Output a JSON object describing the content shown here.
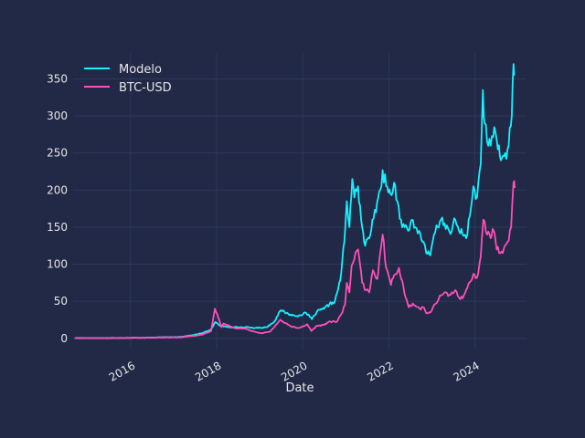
{
  "chart_data": {
    "type": "line",
    "title": "",
    "xlabel": "Date",
    "ylabel": "",
    "x_axis": "date",
    "xlim": [
      "2014-09-01",
      "2025-03-15"
    ],
    "ylim": [
      -15,
      385
    ],
    "grid": true,
    "legend_position": "top-left",
    "x_ticks": [
      "2016-01-01",
      "2018-01-01",
      "2020-01-01",
      "2022-01-01",
      "2024-01-01"
    ],
    "x_tick_labels": [
      "2016",
      "2018",
      "2020",
      "2022",
      "2024"
    ],
    "y_ticks": [
      0,
      50,
      100,
      150,
      200,
      250,
      300,
      350
    ],
    "y_tick_labels": [
      "0",
      "50",
      "100",
      "150",
      "200",
      "250",
      "300",
      "350"
    ],
    "colors": {
      "background": "#212946",
      "grid": "#2e3a5c",
      "text": "#e6e6e6"
    },
    "series": [
      {
        "name": "Modelo",
        "color": "#18f0ff",
        "points": [
          [
            "2014-09-15",
            0.5
          ],
          [
            "2015-06-01",
            0.4
          ],
          [
            "2016-06-01",
            1
          ],
          [
            "2017-03-01",
            2
          ],
          [
            "2017-06-01",
            4
          ],
          [
            "2017-09-01",
            7
          ],
          [
            "2017-11-15",
            12
          ],
          [
            "2017-12-20",
            22
          ],
          [
            "2018-01-20",
            18
          ],
          [
            "2018-03-01",
            16
          ],
          [
            "2018-06-01",
            15
          ],
          [
            "2018-09-01",
            15
          ],
          [
            "2018-12-01",
            14
          ],
          [
            "2019-03-01",
            15
          ],
          [
            "2019-05-01",
            22
          ],
          [
            "2019-07-01",
            38
          ],
          [
            "2019-09-01",
            33
          ],
          [
            "2019-11-01",
            30
          ],
          [
            "2020-02-01",
            34
          ],
          [
            "2020-03-20",
            26
          ],
          [
            "2020-05-01",
            36
          ],
          [
            "2020-07-01",
            40
          ],
          [
            "2020-08-15",
            46
          ],
          [
            "2020-10-01",
            50
          ],
          [
            "2020-11-15",
            78
          ],
          [
            "2020-12-20",
            130
          ],
          [
            "2021-01-10",
            185
          ],
          [
            "2021-02-01",
            150
          ],
          [
            "2021-02-25",
            215
          ],
          [
            "2021-03-15",
            190
          ],
          [
            "2021-04-15",
            205
          ],
          [
            "2021-05-20",
            150
          ],
          [
            "2021-06-15",
            125
          ],
          [
            "2021-07-20",
            135
          ],
          [
            "2021-08-15",
            160
          ],
          [
            "2021-09-15",
            170
          ],
          [
            "2021-10-20",
            200
          ],
          [
            "2021-11-10",
            227
          ],
          [
            "2021-12-10",
            205
          ],
          [
            "2022-01-15",
            195
          ],
          [
            "2022-02-15",
            210
          ],
          [
            "2022-03-15",
            185
          ],
          [
            "2022-04-15",
            160
          ],
          [
            "2022-05-15",
            150
          ],
          [
            "2022-06-15",
            145
          ],
          [
            "2022-07-15",
            160
          ],
          [
            "2022-08-15",
            150
          ],
          [
            "2022-09-15",
            145
          ],
          [
            "2022-10-15",
            130
          ],
          [
            "2022-11-15",
            115
          ],
          [
            "2022-12-20",
            112
          ],
          [
            "2023-01-20",
            140
          ],
          [
            "2023-02-20",
            150
          ],
          [
            "2023-03-20",
            160
          ],
          [
            "2023-04-20",
            155
          ],
          [
            "2023-05-20",
            148
          ],
          [
            "2023-06-20",
            145
          ],
          [
            "2023-07-20",
            160
          ],
          [
            "2023-08-20",
            145
          ],
          [
            "2023-09-20",
            140
          ],
          [
            "2023-10-20",
            135
          ],
          [
            "2023-11-20",
            165
          ],
          [
            "2023-12-20",
            205
          ],
          [
            "2024-01-20",
            190
          ],
          [
            "2024-02-20",
            235
          ],
          [
            "2024-03-10",
            335
          ],
          [
            "2024-03-25",
            290
          ],
          [
            "2024-04-15",
            265
          ],
          [
            "2024-05-15",
            260
          ],
          [
            "2024-06-15",
            285
          ],
          [
            "2024-07-15",
            255
          ],
          [
            "2024-08-10",
            240
          ],
          [
            "2024-09-15",
            250
          ],
          [
            "2024-10-15",
            260
          ],
          [
            "2024-11-10",
            300
          ],
          [
            "2024-11-25",
            370
          ],
          [
            "2024-12-05",
            355
          ]
        ]
      },
      {
        "name": "BTC-USD",
        "color": "#ff4fb8",
        "points": [
          [
            "2014-09-15",
            0.5
          ],
          [
            "2015-06-01",
            0.3
          ],
          [
            "2016-06-01",
            0.8
          ],
          [
            "2017-03-01",
            1.5
          ],
          [
            "2017-06-01",
            3
          ],
          [
            "2017-09-01",
            5
          ],
          [
            "2017-11-15",
            10
          ],
          [
            "2017-12-17",
            40
          ],
          [
            "2018-01-15",
            28
          ],
          [
            "2018-02-10",
            15
          ],
          [
            "2018-03-01",
            20
          ],
          [
            "2018-06-01",
            14
          ],
          [
            "2018-09-01",
            13
          ],
          [
            "2018-11-20",
            9
          ],
          [
            "2019-01-15",
            7
          ],
          [
            "2019-04-01",
            9
          ],
          [
            "2019-06-25",
            25
          ],
          [
            "2019-08-01",
            21
          ],
          [
            "2019-09-25",
            16
          ],
          [
            "2019-12-01",
            14
          ],
          [
            "2020-02-10",
            19
          ],
          [
            "2020-03-15",
            10
          ],
          [
            "2020-05-01",
            17
          ],
          [
            "2020-07-01",
            18
          ],
          [
            "2020-08-15",
            23
          ],
          [
            "2020-10-15",
            22
          ],
          [
            "2020-11-25",
            33
          ],
          [
            "2020-12-25",
            45
          ],
          [
            "2021-01-10",
            75
          ],
          [
            "2021-02-01",
            62
          ],
          [
            "2021-02-20",
            98
          ],
          [
            "2021-03-15",
            107
          ],
          [
            "2021-04-15",
            120
          ],
          [
            "2021-05-20",
            75
          ],
          [
            "2021-06-20",
            65
          ],
          [
            "2021-07-20",
            62
          ],
          [
            "2021-08-20",
            92
          ],
          [
            "2021-09-25",
            80
          ],
          [
            "2021-10-20",
            115
          ],
          [
            "2021-11-10",
            140
          ],
          [
            "2021-12-10",
            95
          ],
          [
            "2022-01-20",
            72
          ],
          [
            "2022-02-15",
            85
          ],
          [
            "2022-03-28",
            95
          ],
          [
            "2022-04-25",
            78
          ],
          [
            "2022-05-15",
            60
          ],
          [
            "2022-06-20",
            42
          ],
          [
            "2022-07-25",
            47
          ],
          [
            "2022-08-20",
            43
          ],
          [
            "2022-09-20",
            40
          ],
          [
            "2022-10-20",
            42
          ],
          [
            "2022-11-15",
            34
          ],
          [
            "2022-12-20",
            35
          ],
          [
            "2023-01-20",
            45
          ],
          [
            "2023-02-20",
            50
          ],
          [
            "2023-03-20",
            58
          ],
          [
            "2023-04-20",
            62
          ],
          [
            "2023-05-20",
            57
          ],
          [
            "2023-06-20",
            62
          ],
          [
            "2023-07-20",
            65
          ],
          [
            "2023-08-20",
            55
          ],
          [
            "2023-09-20",
            54
          ],
          [
            "2023-10-20",
            65
          ],
          [
            "2023-11-20",
            76
          ],
          [
            "2023-12-20",
            87
          ],
          [
            "2024-01-20",
            82
          ],
          [
            "2024-02-20",
            110
          ],
          [
            "2024-03-14",
            160
          ],
          [
            "2024-04-15",
            140
          ],
          [
            "2024-05-15",
            135
          ],
          [
            "2024-06-10",
            145
          ],
          [
            "2024-07-05",
            120
          ],
          [
            "2024-08-05",
            115
          ],
          [
            "2024-09-05",
            122
          ],
          [
            "2024-10-05",
            130
          ],
          [
            "2024-11-05",
            150
          ],
          [
            "2024-11-25",
            210
          ],
          [
            "2024-12-05",
            203
          ]
        ]
      }
    ]
  }
}
